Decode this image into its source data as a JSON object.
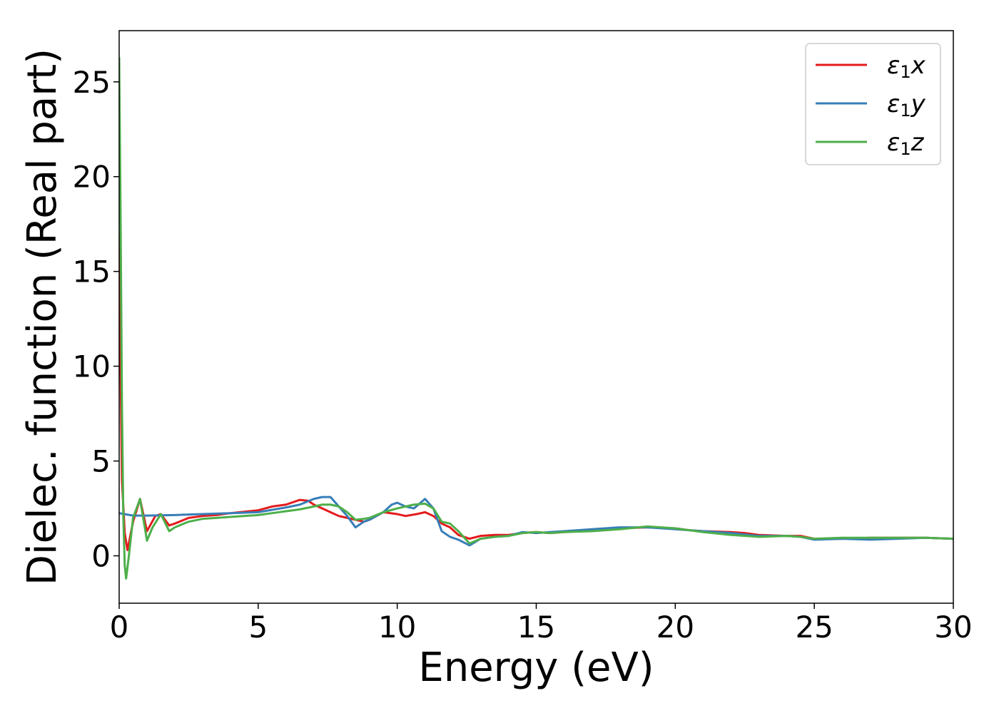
{
  "chart_data": {
    "type": "line",
    "title": "",
    "xlabel": "Energy (eV)",
    "ylabel": "Dielec. function (Real part)",
    "xlim": [
      0,
      30
    ],
    "ylim": [
      -2.5,
      27.7
    ],
    "xticks": [
      0,
      5,
      10,
      15,
      20,
      25,
      30
    ],
    "yticks": [
      0,
      5,
      10,
      15,
      20,
      25
    ],
    "grid": false,
    "legend_position": "top-right",
    "series": [
      {
        "name": "ε₁x",
        "legend_base": "ε",
        "legend_sub": "1",
        "legend_suffix": "x",
        "color": "#e41a1c",
        "x": [
          0,
          0.05,
          0.1,
          0.2,
          0.3,
          0.5,
          0.75,
          1.0,
          1.3,
          1.5,
          1.8,
          2.0,
          2.5,
          3.0,
          3.5,
          4.0,
          5.0,
          5.5,
          6.0,
          6.5,
          6.8,
          7.0,
          7.3,
          7.6,
          7.9,
          8.2,
          8.5,
          8.8,
          9.0,
          9.5,
          10.0,
          10.3,
          10.7,
          11.0,
          11.3,
          11.6,
          11.9,
          12.2,
          12.6,
          13.0,
          13.5,
          14.0,
          14.5,
          15.0,
          15.5,
          16.0,
          17.0,
          18.0,
          19.0,
          20.0,
          20.5,
          21.0,
          22.0,
          22.5,
          23.0,
          24.0,
          24.5,
          25.0,
          26.0,
          27.0,
          28.0,
          29.0,
          30.0
        ],
        "y": [
          17.0,
          10.0,
          4.0,
          1.2,
          0.3,
          1.8,
          3.0,
          1.3,
          2.1,
          2.2,
          1.6,
          1.7,
          2.0,
          2.1,
          2.15,
          2.25,
          2.4,
          2.6,
          2.7,
          2.95,
          2.9,
          2.7,
          2.5,
          2.3,
          2.1,
          2.0,
          1.9,
          1.8,
          1.9,
          2.3,
          2.2,
          2.1,
          2.2,
          2.3,
          2.1,
          1.7,
          1.5,
          1.1,
          0.9,
          1.05,
          1.1,
          1.1,
          1.2,
          1.25,
          1.2,
          1.25,
          1.35,
          1.45,
          1.5,
          1.45,
          1.35,
          1.3,
          1.25,
          1.2,
          1.1,
          1.05,
          1.05,
          0.9,
          0.9,
          0.95,
          0.95,
          0.95,
          0.9
        ]
      },
      {
        "name": "ε₁y",
        "legend_base": "ε",
        "legend_sub": "1",
        "legend_suffix": "y",
        "color": "#377eb8",
        "x": [
          0,
          0.5,
          1.0,
          2.0,
          3.0,
          4.0,
          5.0,
          6.0,
          6.5,
          7.0,
          7.3,
          7.6,
          7.9,
          8.2,
          8.5,
          8.8,
          9.0,
          9.5,
          9.8,
          10.0,
          10.3,
          10.6,
          11.0,
          11.3,
          11.6,
          11.9,
          12.2,
          12.6,
          13.0,
          13.5,
          14.0,
          14.5,
          15.0,
          15.5,
          16.0,
          17.0,
          18.0,
          19.0,
          20.0,
          21.0,
          22.0,
          23.0,
          24.0,
          24.5,
          25.0,
          26.0,
          27.0,
          28.0,
          29.0,
          30.0
        ],
        "y": [
          2.25,
          2.12,
          2.12,
          2.15,
          2.2,
          2.25,
          2.3,
          2.55,
          2.7,
          3.0,
          3.1,
          3.1,
          2.6,
          2.1,
          1.5,
          1.8,
          1.9,
          2.3,
          2.7,
          2.8,
          2.6,
          2.5,
          3.0,
          2.5,
          1.3,
          1.0,
          0.85,
          0.55,
          0.9,
          1.0,
          1.05,
          1.25,
          1.2,
          1.25,
          1.3,
          1.4,
          1.5,
          1.5,
          1.4,
          1.3,
          1.2,
          1.05,
          1.05,
          1.0,
          0.85,
          0.9,
          0.85,
          0.9,
          0.95,
          0.9
        ]
      },
      {
        "name": "ε₁z",
        "legend_base": "ε",
        "legend_sub": "1",
        "legend_suffix": "z",
        "color": "#4daf4a",
        "x": [
          0,
          0.05,
          0.1,
          0.15,
          0.2,
          0.25,
          0.35,
          0.5,
          0.75,
          1.0,
          1.2,
          1.5,
          1.8,
          2.0,
          2.5,
          3.0,
          3.5,
          4.0,
          5.0,
          5.5,
          6.0,
          6.5,
          7.0,
          7.3,
          7.6,
          7.9,
          8.2,
          8.5,
          8.8,
          9.0,
          9.5,
          10.0,
          10.3,
          10.6,
          11.0,
          11.3,
          11.6,
          11.9,
          12.2,
          12.6,
          13.0,
          13.5,
          14.0,
          14.5,
          15.0,
          15.5,
          16.0,
          17.0,
          18.0,
          19.0,
          20.0,
          21.0,
          22.0,
          23.0,
          24.0,
          24.5,
          25.0,
          26.0,
          27.0,
          28.0,
          29.0,
          30.0
        ],
        "y": [
          26.3,
          18.0,
          8.0,
          2.0,
          -0.5,
          -1.2,
          0.0,
          2.0,
          3.0,
          0.8,
          1.5,
          2.2,
          1.3,
          1.5,
          1.8,
          1.95,
          2.0,
          2.05,
          2.15,
          2.25,
          2.35,
          2.45,
          2.6,
          2.7,
          2.7,
          2.6,
          2.3,
          1.9,
          1.95,
          2.0,
          2.3,
          2.5,
          2.6,
          2.7,
          2.75,
          2.5,
          1.8,
          1.7,
          1.3,
          0.65,
          0.9,
          1.0,
          1.05,
          1.2,
          1.25,
          1.2,
          1.25,
          1.3,
          1.4,
          1.55,
          1.45,
          1.25,
          1.1,
          1.0,
          1.05,
          1.0,
          0.9,
          0.95,
          0.95,
          0.95,
          0.95,
          0.9
        ]
      }
    ]
  }
}
